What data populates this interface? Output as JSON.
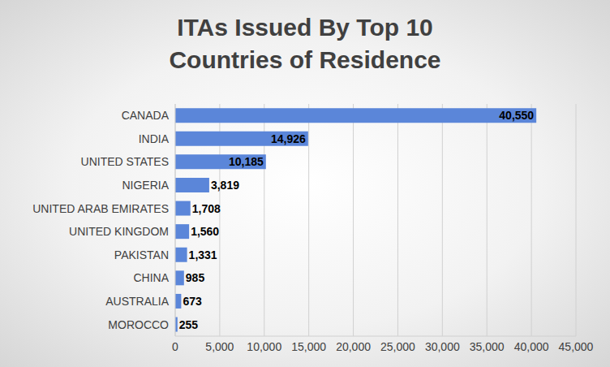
{
  "chart_data": {
    "type": "bar",
    "title": "ITAs Issued By Top 10 Countries of Residence",
    "orientation": "horizontal",
    "categories": [
      "CANADA",
      "INDIA",
      "UNITED STATES",
      "NIGERIA",
      "UNITED ARAB EMIRATES",
      "UNITED KINGDOM",
      "PAKISTAN",
      "CHINA",
      "AUSTRALIA",
      "MOROCCO"
    ],
    "values": [
      40550,
      14926,
      10185,
      3819,
      1708,
      1560,
      1331,
      985,
      673,
      255
    ],
    "value_labels": [
      "40,550",
      "14,926",
      "10,185",
      "3,819",
      "1,708",
      "1,560",
      "1,331",
      "985",
      "673",
      "255"
    ],
    "data_labels": true,
    "color": "#5b86d9",
    "xlim": [
      0,
      45000
    ],
    "xticks": [
      0,
      {
        "value": 5000,
        "label": "5,000"
      },
      {
        "value": 10000,
        "label": "10,000"
      },
      {
        "value": 15000,
        "label": "15,000"
      },
      {
        "value": 20000,
        "label": "20,000"
      },
      {
        "value": 25000,
        "label": "25,000"
      },
      {
        "value": 30000,
        "label": "30,000"
      },
      {
        "value": 35000,
        "label": "35,000"
      },
      {
        "value": 40000,
        "label": "40,000"
      },
      {
        "value": 45000,
        "label": "45,000"
      }
    ],
    "grid": true
  }
}
